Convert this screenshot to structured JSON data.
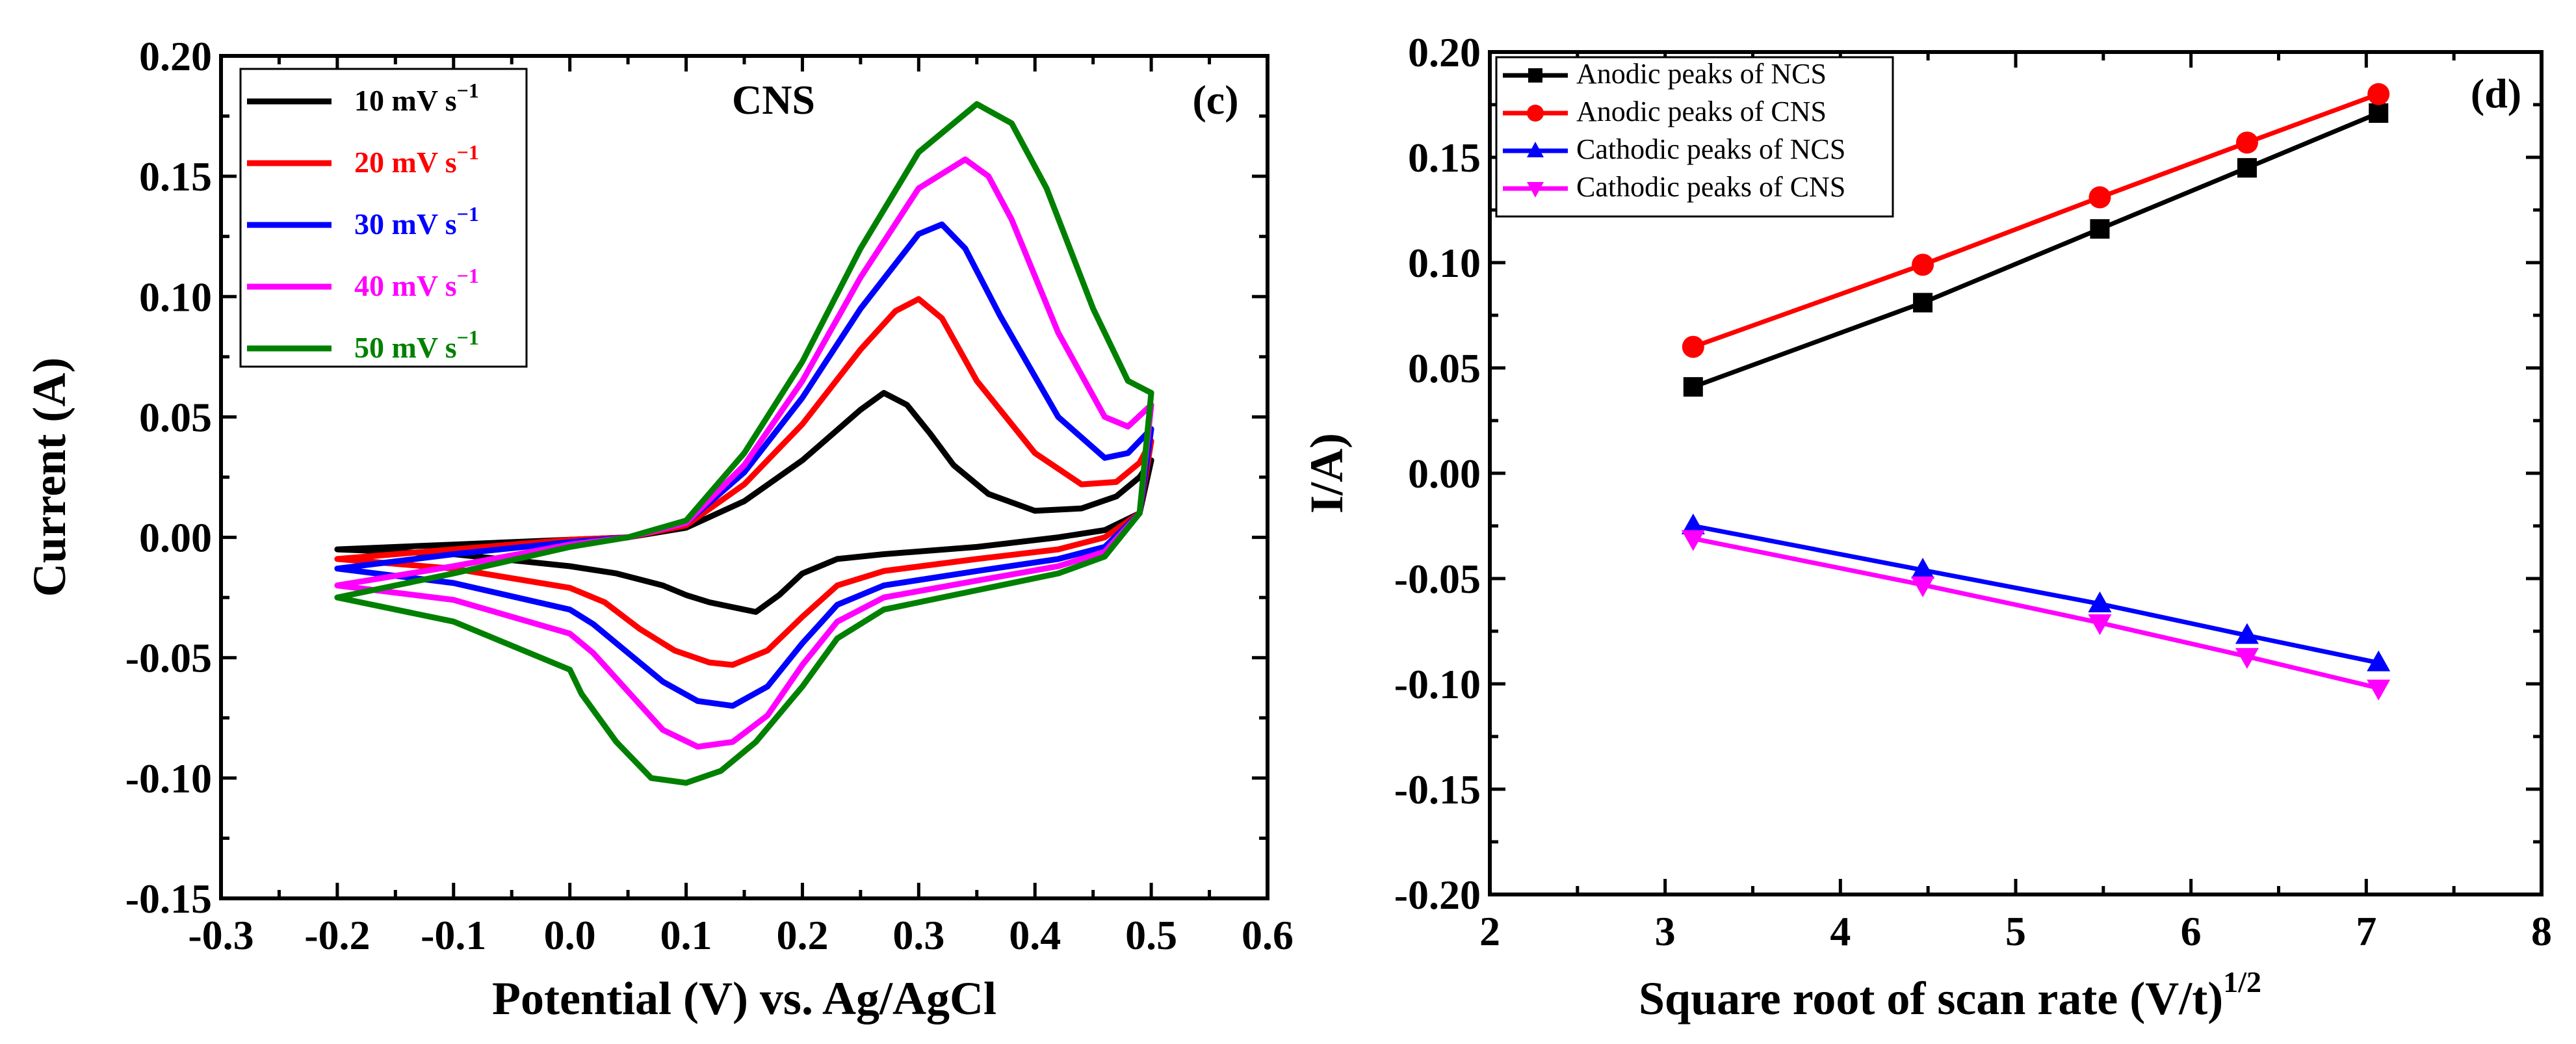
{
  "chart_data": [
    {
      "type": "line",
      "panel_label": "(c)",
      "title": "CNS",
      "xlabel": "Potential (V) vs. Ag/AgCl",
      "ylabel": "Current (A)",
      "xlim": [
        -0.3,
        0.6
      ],
      "ylim": [
        -0.15,
        0.2
      ],
      "xticks": [
        "-0.3",
        "-0.2",
        "-0.1",
        "0.0",
        "0.1",
        "0.2",
        "0.3",
        "0.4",
        "0.5",
        "0.6"
      ],
      "yticks": [
        "-0.15",
        "-0.10",
        "-0.05",
        "0.00",
        "0.05",
        "0.10",
        "0.15",
        "0.20"
      ],
      "legend_position": "top-left",
      "series": [
        {
          "name": "10 mV s",
          "exp": "−1",
          "color": "#000000",
          "x": [
            -0.2,
            -0.1,
            0.0,
            0.05,
            0.1,
            0.15,
            0.2,
            0.25,
            0.27,
            0.29,
            0.31,
            0.33,
            0.36,
            0.4,
            0.44,
            0.47,
            0.49,
            0.5,
            0.49,
            0.46,
            0.42,
            0.35,
            0.27,
            0.23,
            0.2,
            0.18,
            0.16,
            0.14,
            0.12,
            0.1,
            0.08,
            0.04,
            0.0,
            -0.1,
            -0.2
          ],
          "y": [
            -0.005,
            -0.003,
            -0.001,
            0.0,
            0.004,
            0.015,
            0.032,
            0.053,
            0.06,
            0.055,
            0.043,
            0.03,
            0.018,
            0.011,
            0.012,
            0.017,
            0.025,
            0.032,
            0.01,
            0.003,
            0.0,
            -0.004,
            -0.007,
            -0.009,
            -0.015,
            -0.024,
            -0.031,
            -0.029,
            -0.027,
            -0.024,
            -0.02,
            -0.015,
            -0.012,
            -0.007,
            -0.005
          ]
        },
        {
          "name": "20 mV s",
          "exp": "−1",
          "color": "#ff0000",
          "x": [
            -0.2,
            -0.1,
            0.0,
            0.05,
            0.1,
            0.15,
            0.2,
            0.25,
            0.28,
            0.3,
            0.32,
            0.35,
            0.4,
            0.44,
            0.47,
            0.49,
            0.5,
            0.49,
            0.46,
            0.42,
            0.35,
            0.27,
            0.23,
            0.2,
            0.17,
            0.14,
            0.12,
            0.09,
            0.06,
            0.03,
            0.0,
            -0.1,
            -0.2
          ],
          "y": [
            -0.009,
            -0.005,
            -0.001,
            0.0,
            0.005,
            0.022,
            0.047,
            0.078,
            0.094,
            0.099,
            0.091,
            0.065,
            0.035,
            0.022,
            0.023,
            0.031,
            0.04,
            0.01,
            0.0,
            -0.005,
            -0.009,
            -0.014,
            -0.02,
            -0.033,
            -0.047,
            -0.053,
            -0.052,
            -0.047,
            -0.038,
            -0.027,
            -0.021,
            -0.013,
            -0.009
          ]
        },
        {
          "name": "30 mV s",
          "exp": "−1",
          "color": "#0000ff",
          "x": [
            -0.2,
            -0.1,
            0.0,
            0.05,
            0.1,
            0.15,
            0.2,
            0.25,
            0.3,
            0.32,
            0.34,
            0.37,
            0.42,
            0.46,
            0.48,
            0.5,
            0.49,
            0.46,
            0.42,
            0.35,
            0.27,
            0.23,
            0.2,
            0.17,
            0.14,
            0.11,
            0.08,
            0.05,
            0.02,
            0.0,
            -0.1,
            -0.2
          ],
          "y": [
            -0.013,
            -0.007,
            -0.002,
            0.0,
            0.006,
            0.027,
            0.058,
            0.095,
            0.126,
            0.13,
            0.12,
            0.092,
            0.05,
            0.033,
            0.035,
            0.045,
            0.01,
            -0.004,
            -0.009,
            -0.014,
            -0.02,
            -0.028,
            -0.044,
            -0.062,
            -0.07,
            -0.068,
            -0.06,
            -0.048,
            -0.036,
            -0.03,
            -0.019,
            -0.013
          ]
        },
        {
          "name": "40 mV s",
          "exp": "−1",
          "color": "#ff00ff",
          "x": [
            -0.2,
            -0.1,
            0.0,
            0.05,
            0.1,
            0.15,
            0.2,
            0.25,
            0.3,
            0.34,
            0.36,
            0.38,
            0.42,
            0.46,
            0.48,
            0.5,
            0.49,
            0.46,
            0.42,
            0.35,
            0.27,
            0.23,
            0.2,
            0.17,
            0.14,
            0.11,
            0.08,
            0.05,
            0.02,
            0.0,
            -0.1,
            -0.2
          ],
          "y": [
            -0.02,
            -0.012,
            -0.003,
            0.0,
            0.006,
            0.03,
            0.065,
            0.108,
            0.145,
            0.157,
            0.15,
            0.132,
            0.085,
            0.05,
            0.046,
            0.055,
            0.01,
            -0.006,
            -0.012,
            -0.018,
            -0.025,
            -0.035,
            -0.053,
            -0.074,
            -0.085,
            -0.087,
            -0.08,
            -0.064,
            -0.048,
            -0.04,
            -0.026,
            -0.02
          ]
        },
        {
          "name": "50 mV s",
          "exp": "−1",
          "color": "#008000",
          "x": [
            -0.2,
            -0.1,
            0.0,
            0.05,
            0.1,
            0.15,
            0.2,
            0.25,
            0.3,
            0.35,
            0.38,
            0.41,
            0.45,
            0.48,
            0.5,
            0.49,
            0.46,
            0.42,
            0.35,
            0.27,
            0.23,
            0.2,
            0.16,
            0.13,
            0.1,
            0.07,
            0.04,
            0.01,
            0.0,
            -0.1,
            -0.2
          ],
          "y": [
            -0.025,
            -0.015,
            -0.004,
            0.0,
            0.007,
            0.035,
            0.073,
            0.12,
            0.16,
            0.18,
            0.172,
            0.145,
            0.095,
            0.065,
            0.06,
            0.01,
            -0.008,
            -0.015,
            -0.022,
            -0.03,
            -0.042,
            -0.062,
            -0.085,
            -0.097,
            -0.102,
            -0.1,
            -0.085,
            -0.065,
            -0.055,
            -0.035,
            -0.025
          ]
        }
      ]
    },
    {
      "type": "line",
      "panel_label": "(d)",
      "title": "",
      "xlabel": "Square root of scan rate (V/t)",
      "xlabel_exp": "1/2",
      "ylabel": "I/A)",
      "xlim": [
        2,
        8
      ],
      "ylim": [
        -0.2,
        0.2
      ],
      "xticks": [
        "2",
        "3",
        "4",
        "5",
        "6",
        "7",
        "8"
      ],
      "yticks": [
        "-0.20",
        "-0.15",
        "-0.10",
        "-0.05",
        "0.00",
        "0.05",
        "0.10",
        "0.15",
        "0.20"
      ],
      "legend_position": "top-left",
      "series": [
        {
          "name": "Anodic peaks of NCS",
          "color": "#000000",
          "marker": "square",
          "x": [
            3.16,
            4.47,
            5.48,
            6.32,
            7.07
          ],
          "y": [
            0.041,
            0.081,
            0.116,
            0.145,
            0.171
          ]
        },
        {
          "name": "Anodic peaks of CNS",
          "color": "#ff0000",
          "marker": "circle",
          "x": [
            3.16,
            4.47,
            5.48,
            6.32,
            7.07
          ],
          "y": [
            0.06,
            0.099,
            0.131,
            0.157,
            0.18
          ]
        },
        {
          "name": "Cathodic peaks of NCS",
          "color": "#0000ff",
          "marker": "triangle-up",
          "x": [
            3.16,
            4.47,
            5.48,
            6.32,
            7.07
          ],
          "y": [
            -0.025,
            -0.046,
            -0.062,
            -0.077,
            -0.09
          ]
        },
        {
          "name": "Cathodic peaks of CNS",
          "color": "#ff00ff",
          "marker": "triangle-down",
          "x": [
            3.16,
            4.47,
            5.48,
            6.32,
            7.07
          ],
          "y": [
            -0.031,
            -0.053,
            -0.071,
            -0.087,
            -0.102
          ]
        }
      ]
    }
  ]
}
